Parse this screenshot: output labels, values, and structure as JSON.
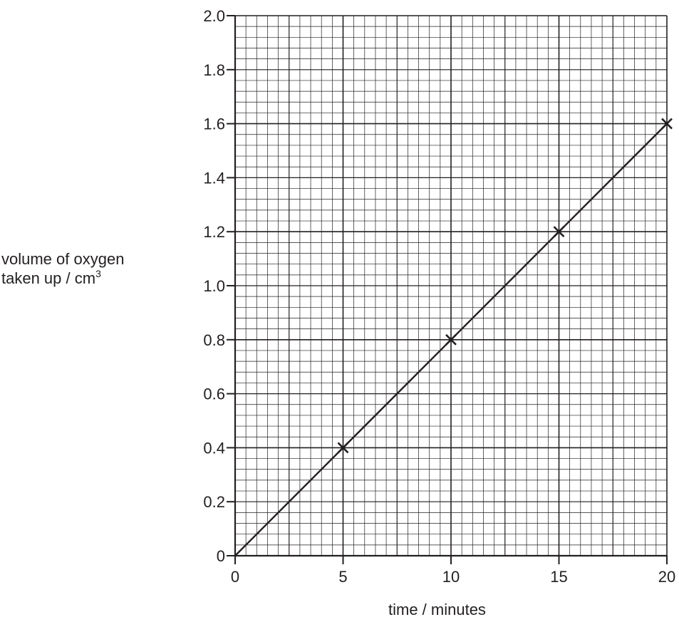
{
  "chart_data": {
    "type": "line",
    "title": "",
    "xlabel": "time / minutes",
    "ylabel": {
      "line1": "volume of oxygen",
      "line2": "taken up / cm",
      "superscript": "3"
    },
    "xlim": [
      0,
      20
    ],
    "ylim": [
      0,
      2.0
    ],
    "x_ticks": [
      "0",
      "5",
      "10",
      "15",
      "20"
    ],
    "y_ticks": [
      "0",
      "0.2",
      "0.4",
      "0.6",
      "0.8",
      "1.0",
      "1.2",
      "1.4",
      "1.6",
      "1.8",
      "2.0"
    ],
    "grid": true,
    "legend": "none",
    "series": [
      {
        "x": [
          0,
          5,
          10,
          15,
          20
        ],
        "y": [
          0,
          0.4,
          0.8,
          1.2,
          1.6
        ],
        "markers": [
          {
            "x": 5,
            "y": 0.4
          },
          {
            "x": 10,
            "y": 0.8
          },
          {
            "x": 15,
            "y": 1.2
          },
          {
            "x": 20,
            "y": 1.6
          }
        ],
        "marker": "x",
        "line": "straight line through origin"
      }
    ],
    "colors": {
      "line": "#231f20",
      "grid": "#231f20",
      "background": "#ffffff"
    }
  }
}
